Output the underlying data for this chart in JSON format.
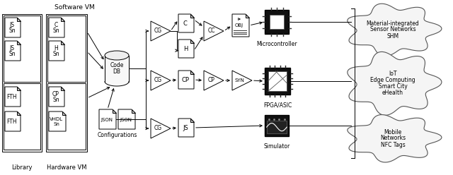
{
  "bg_color": "#ffffff",
  "fig_width": 6.4,
  "fig_height": 2.48,
  "dpi": 100,
  "elements": {
    "software_vm_label": "Software VM",
    "library_label": "Library",
    "hardware_vm_label": "Hardware VM",
    "configurations_label": "Configurations",
    "microcontroller_label": "Microcontroller",
    "fpga_label": "FPGA/ASIC",
    "simulator_label": "Simulator",
    "cloud1_lines": [
      "Material-integrated",
      "Sensor Networks",
      "SHM"
    ],
    "cloud2_lines": [
      "IoT",
      "Edge Computing",
      "Smart City",
      "eHealth"
    ],
    "cloud3_lines": [
      "Mobile",
      "Networks",
      "NFC Tags"
    ],
    "doc_color": "#ffffff",
    "doc_border": "#000000",
    "line_color": "#000000"
  }
}
